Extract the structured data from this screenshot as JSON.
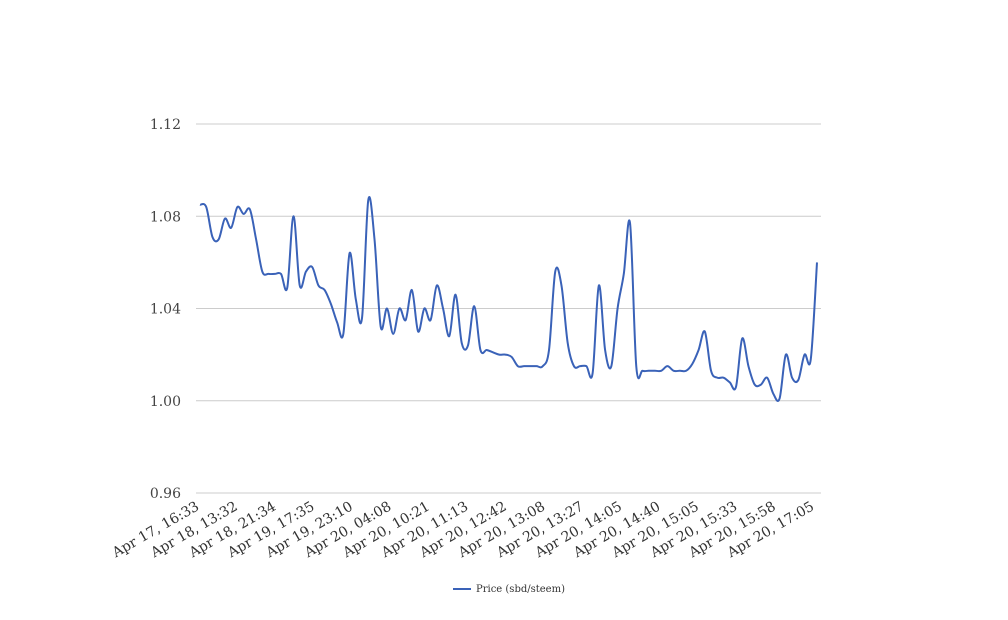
{
  "chart_data": {
    "type": "line",
    "x_tick_labels": [
      "Apr 17, 16:33",
      "Apr 18, 13:32",
      "Apr 18, 21:34",
      "Apr 19, 17:35",
      "Apr 19, 23:10",
      "Apr 20, 04:08",
      "Apr 20, 10:21",
      "Apr 20, 11:13",
      "Apr 20, 12:42",
      "Apr 20, 13:08",
      "Apr 20, 13:27",
      "Apr 20, 14:05",
      "Apr 20, 14:40",
      "Apr 20, 15:05",
      "Apr 20, 15:33",
      "Apr 20, 15:58",
      "Apr 20, 17:05"
    ],
    "y_ticks": [
      "0.96",
      "1.00",
      "1.04",
      "1.08",
      "1.12"
    ],
    "ylim": [
      0.96,
      1.12
    ],
    "grid": true,
    "legend_position": "bottom-center",
    "series": [
      {
        "name": "Price (sbd/steem)",
        "color": "#3a62b8",
        "values": [
          1.085,
          1.084,
          1.071,
          1.07,
          1.079,
          1.075,
          1.084,
          1.081,
          1.083,
          1.07,
          1.056,
          1.055,
          1.055,
          1.055,
          1.049,
          1.08,
          1.05,
          1.056,
          1.058,
          1.05,
          1.048,
          1.042,
          1.034,
          1.029,
          1.064,
          1.044,
          1.036,
          1.087,
          1.07,
          1.032,
          1.04,
          1.029,
          1.04,
          1.035,
          1.048,
          1.03,
          1.04,
          1.035,
          1.05,
          1.04,
          1.028,
          1.046,
          1.025,
          1.024,
          1.041,
          1.022,
          1.022,
          1.021,
          1.02,
          1.02,
          1.019,
          1.015,
          1.015,
          1.015,
          1.015,
          1.015,
          1.022,
          1.056,
          1.05,
          1.025,
          1.015,
          1.015,
          1.015,
          1.012,
          1.05,
          1.022,
          1.015,
          1.04,
          1.055,
          1.077,
          1.015,
          1.013,
          1.013,
          1.013,
          1.013,
          1.015,
          1.013,
          1.013,
          1.013,
          1.016,
          1.022,
          1.03,
          1.013,
          1.01,
          1.01,
          1.008,
          1.006,
          1.027,
          1.015,
          1.007,
          1.007,
          1.01,
          1.003,
          1.001,
          1.02,
          1.01,
          1.009,
          1.02,
          1.018,
          1.06
        ]
      }
    ]
  }
}
